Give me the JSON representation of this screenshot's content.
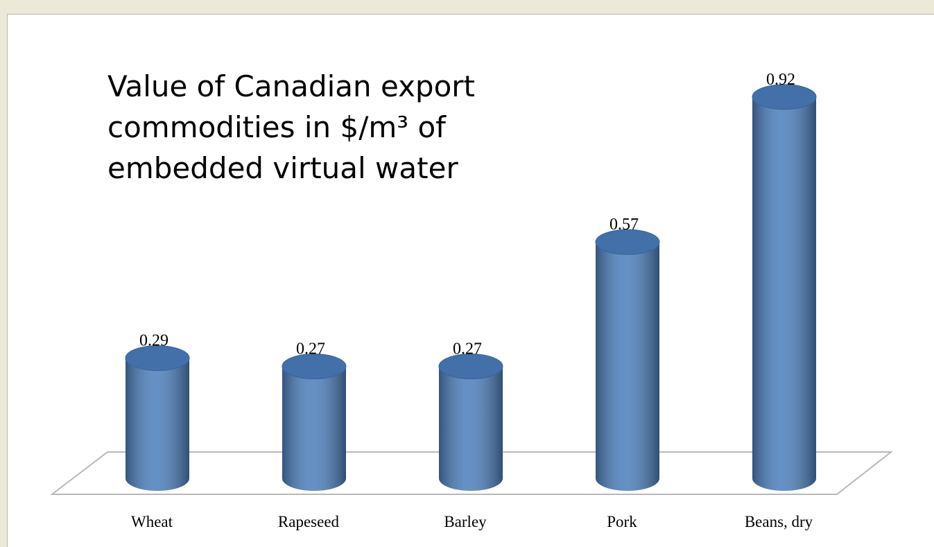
{
  "chart_data": {
    "type": "bar",
    "title": "Value of Canadian export commodities in $/m³ of embedded virtual water",
    "categories": [
      "Wheat",
      "Rapeseed",
      "Barley",
      "Pork",
      "Beans, dry"
    ],
    "values": [
      0.29,
      0.27,
      0.27,
      0.57,
      0.92
    ],
    "color": "#4f81bd"
  }
}
